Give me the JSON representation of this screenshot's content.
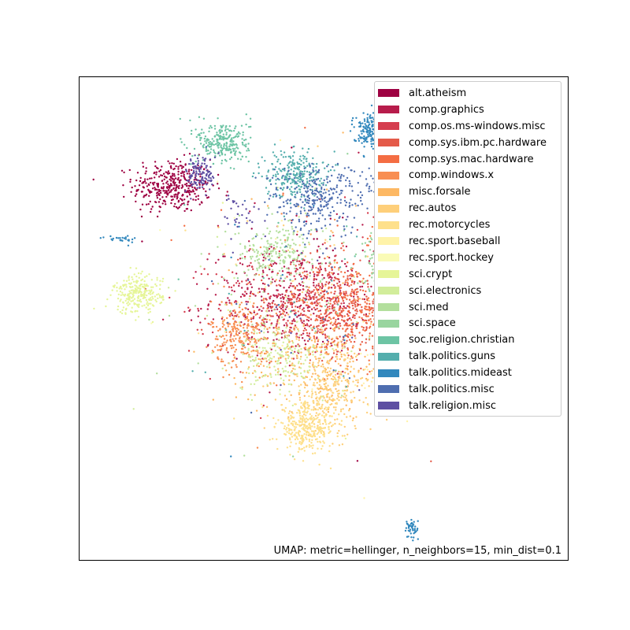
{
  "chart_data": {
    "type": "scatter",
    "title": "",
    "xlabel": "",
    "ylabel": "",
    "xlim": [
      -10,
      10
    ],
    "ylim": [
      -10,
      10
    ],
    "axes_ticks": "hidden",
    "grid": false,
    "legend_position": "top-right",
    "annotation": "UMAP: metric=hellinger, n_neighbors=15, min_dist=0.1",
    "series": [
      {
        "name": "alt.atheism",
        "color": "#9e0142",
        "clusters": [
          {
            "x": -6.2,
            "y": 5.5,
            "sx": 0.8,
            "sy": 0.55,
            "n": 380
          }
        ],
        "scatter": 25
      },
      {
        "name": "comp.graphics",
        "color": "#b71c4b",
        "clusters": [
          {
            "x": -1.4,
            "y": 0.8,
            "sx": 1.6,
            "sy": 1.0,
            "n": 380
          }
        ],
        "scatter": 40
      },
      {
        "name": "comp.os.ms-windows.misc",
        "color": "#d53e4f",
        "clusters": [
          {
            "x": -1.0,
            "y": 0.6,
            "sx": 1.7,
            "sy": 1.1,
            "n": 280
          }
        ],
        "scatter": 30
      },
      {
        "name": "comp.sys.ibm.pc.hardware",
        "color": "#e45a49",
        "clusters": [
          {
            "x": 0.5,
            "y": 0.6,
            "sx": 1.3,
            "sy": 1.0,
            "n": 320
          }
        ],
        "scatter": 30
      },
      {
        "name": "comp.sys.mac.hardware",
        "color": "#f46d43",
        "clusters": [
          {
            "x": 1.2,
            "y": 0.4,
            "sx": 1.0,
            "sy": 1.1,
            "n": 280
          }
        ],
        "scatter": 30
      },
      {
        "name": "comp.windows.x",
        "color": "#f88e52",
        "clusters": [
          {
            "x": -3.4,
            "y": -0.6,
            "sx": 0.6,
            "sy": 0.7,
            "n": 260
          }
        ],
        "scatter": 25
      },
      {
        "name": "misc.forsale",
        "color": "#fdb863",
        "clusters": [
          {
            "x": -0.5,
            "y": -1.8,
            "sx": 1.5,
            "sy": 0.9,
            "n": 240
          }
        ],
        "scatter": 40
      },
      {
        "name": "rec.autos",
        "color": "#fecf7a",
        "clusters": [
          {
            "x": 0.3,
            "y": -3.0,
            "sx": 0.9,
            "sy": 0.9,
            "n": 300
          }
        ],
        "scatter": 25
      },
      {
        "name": "rec.motorcycles",
        "color": "#fee08b",
        "clusters": [
          {
            "x": -0.7,
            "y": -4.5,
            "sx": 0.6,
            "sy": 0.5,
            "n": 340
          }
        ],
        "scatter": 20
      },
      {
        "name": "rec.sport.baseball",
        "color": "#fff3a9",
        "clusters": [
          {
            "x": 3.3,
            "y": -2.2,
            "sx": 0.6,
            "sy": 0.6,
            "n": 260
          }
        ],
        "scatter": 20
      },
      {
        "name": "rec.sport.hockey",
        "color": "#fafbb7",
        "clusters": [
          {
            "x": 4.1,
            "y": -0.9,
            "sx": 0.55,
            "sy": 0.5,
            "n": 300
          }
        ],
        "scatter": 15
      },
      {
        "name": "sci.crypt",
        "color": "#e6f598",
        "clusters": [
          {
            "x": -7.6,
            "y": 1.0,
            "sx": 0.5,
            "sy": 0.4,
            "n": 260
          }
        ],
        "scatter": 15
      },
      {
        "name": "sci.electronics",
        "color": "#d2ed9b",
        "clusters": [
          {
            "x": -1.8,
            "y": -1.6,
            "sx": 0.9,
            "sy": 0.7,
            "n": 200
          }
        ],
        "scatter": 40
      },
      {
        "name": "sci.med",
        "color": "#b3df9d",
        "clusters": [
          {
            "x": -2.0,
            "y": 2.8,
            "sx": 0.8,
            "sy": 0.5,
            "n": 200
          }
        ],
        "scatter": 40
      },
      {
        "name": "sci.space",
        "color": "#99d59f",
        "clusters": [
          {
            "x": 2.9,
            "y": 2.5,
            "sx": 0.6,
            "sy": 0.55,
            "n": 300
          }
        ],
        "scatter": 20
      },
      {
        "name": "soc.religion.christian",
        "color": "#6dc4a4",
        "clusters": [
          {
            "x": -4.1,
            "y": 7.3,
            "sx": 0.55,
            "sy": 0.45,
            "n": 260
          }
        ],
        "scatter": 15
      },
      {
        "name": "talk.politics.guns",
        "color": "#54aead",
        "clusters": [
          {
            "x": -1.2,
            "y": 6.0,
            "sx": 0.6,
            "sy": 0.5,
            "n": 260
          }
        ],
        "scatter": 20
      },
      {
        "name": "talk.politics.mideast",
        "color": "#3288bd",
        "clusters": [
          {
            "x": 1.9,
            "y": 7.8,
            "sx": 0.35,
            "sy": 0.35,
            "n": 180
          },
          {
            "x": 3.6,
            "y": -8.7,
            "sx": 0.15,
            "sy": 0.25,
            "n": 45
          },
          {
            "x": -8.3,
            "y": 3.3,
            "sx": 0.3,
            "sy": 0.08,
            "n": 25
          }
        ],
        "scatter": 15
      },
      {
        "name": "talk.politics.misc",
        "color": "#4f6eb0",
        "clusters": [
          {
            "x": -0.3,
            "y": 5.0,
            "sx": 1.0,
            "sy": 0.7,
            "n": 300
          },
          {
            "x": 2.2,
            "y": 5.5,
            "sx": 0.2,
            "sy": 0.3,
            "n": 30
          }
        ],
        "scatter": 25
      },
      {
        "name": "talk.religion.misc",
        "color": "#5e4fa2",
        "clusters": [
          {
            "x": -5.0,
            "y": 6.0,
            "sx": 0.3,
            "sy": 0.4,
            "n": 120
          },
          {
            "x": -3.5,
            "y": 4.4,
            "sx": 0.4,
            "sy": 0.4,
            "n": 30
          }
        ],
        "scatter": 20
      }
    ]
  }
}
